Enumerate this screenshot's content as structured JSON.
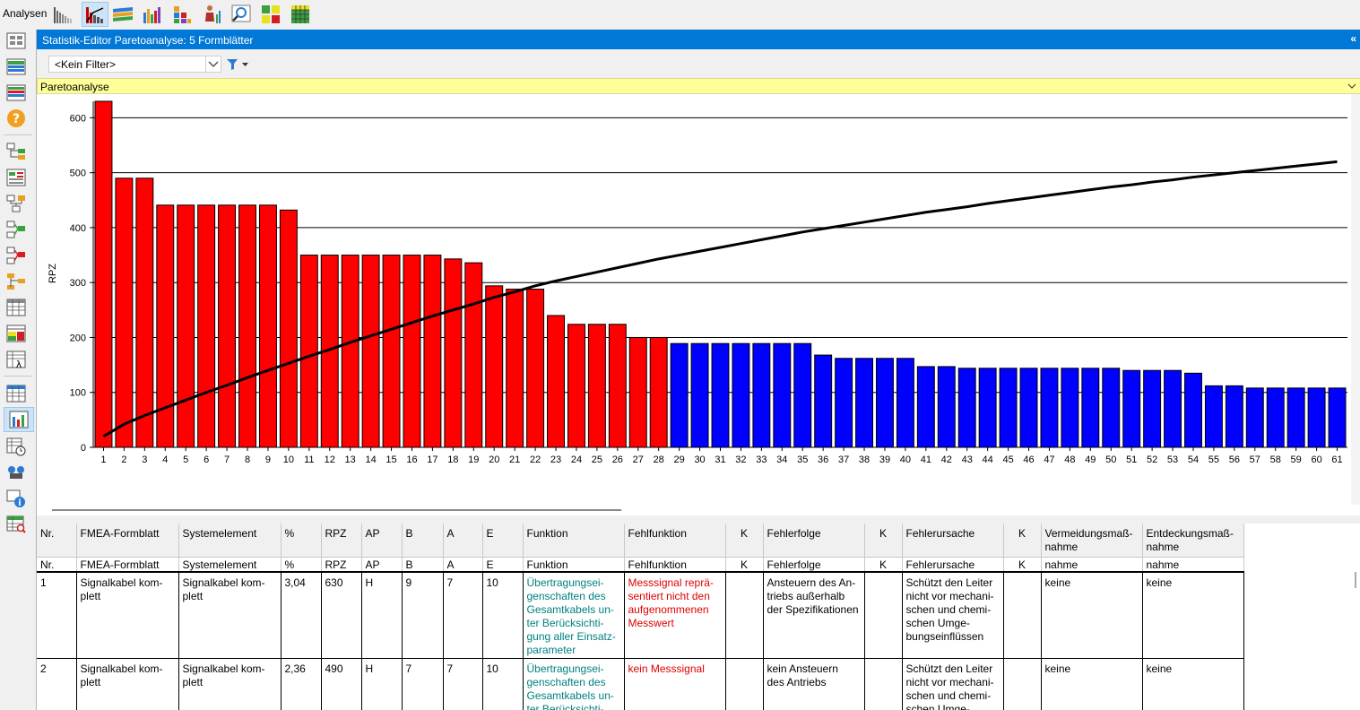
{
  "toolbar": {
    "label": "Analysen",
    "icons": [
      "bar-chart-icon",
      "pareto-chart-icon",
      "trend-lines-icon",
      "multi-bar-chart-icon",
      "stacked-blocks-icon",
      "person-chart-icon",
      "magnifier-chart-icon",
      "matrix-grid-icon",
      "matrix-table-icon"
    ]
  },
  "sidebar": {
    "icons": [
      "overview-grid-icon",
      "list-view-icon",
      "form-view-icon",
      "help-icon",
      "structure-tree-icon",
      "structure-form-icon",
      "function-tree-icon",
      "function-net-icon",
      "failure-net-icon",
      "failure-tree-icon",
      "table-icon",
      "table-colored-icon",
      "table-lambda-icon",
      "table-split-icon",
      "statistics-icon",
      "schedule-icon",
      "search-people-icon",
      "info-icon",
      "table-search-icon"
    ]
  },
  "panel": {
    "title": "Statistik-Editor Paretoanalyse: 5 Formblätter",
    "collapse_glyph": "«",
    "filter_value": "<Kein Filter>",
    "analysis_type": "Paretoanalyse"
  },
  "colors": {
    "accent": "#0078d7",
    "above_threshold": "#ff0000",
    "below_threshold": "#0000ff",
    "highlight_bar": "#ffff99"
  },
  "chart_data": {
    "type": "bar",
    "ylabel": "RPZ",
    "ylim": [
      0,
      630
    ],
    "yticks": [
      0,
      100,
      200,
      300,
      400,
      500,
      600
    ],
    "grid": true,
    "categories": [
      "1",
      "2",
      "3",
      "4",
      "5",
      "6",
      "7",
      "8",
      "9",
      "10",
      "11",
      "12",
      "13",
      "14",
      "15",
      "16",
      "17",
      "18",
      "19",
      "20",
      "21",
      "22",
      "23",
      "24",
      "25",
      "26",
      "27",
      "28",
      "29",
      "30",
      "31",
      "32",
      "33",
      "34",
      "35",
      "36",
      "37",
      "38",
      "39",
      "40",
      "41",
      "42",
      "43",
      "44",
      "45",
      "46",
      "47",
      "48",
      "49",
      "50",
      "51",
      "52",
      "53",
      "54",
      "55",
      "56",
      "57",
      "58",
      "59",
      "60",
      "61"
    ],
    "values": [
      630,
      490,
      490,
      441,
      441,
      441,
      441,
      441,
      441,
      432,
      350,
      350,
      350,
      350,
      350,
      350,
      350,
      343,
      336,
      294,
      288,
      288,
      240,
      224,
      224,
      224,
      200,
      200,
      189,
      189,
      189,
      189,
      189,
      189,
      189,
      168,
      162,
      162,
      162,
      162,
      147,
      147,
      144,
      144,
      144,
      144,
      144,
      144,
      144,
      144,
      140,
      140,
      140,
      135,
      112,
      112,
      108,
      108,
      108,
      108,
      108
    ],
    "red_count": 28,
    "series": [
      {
        "values": [
          20,
          42,
          58,
          72,
          86,
          100,
          113,
          127,
          140,
          153,
          166,
          178,
          191,
          203,
          215,
          227,
          239,
          250,
          261,
          273,
          283,
          294,
          303,
          311,
          319,
          327,
          335,
          343,
          350,
          357,
          364,
          371,
          378,
          385,
          392,
          398,
          404,
          410,
          416,
          422,
          428,
          433,
          438,
          444,
          449,
          454,
          459,
          464,
          469,
          474,
          478,
          483,
          487,
          492,
          496,
          500,
          504,
          508,
          512,
          516,
          520
        ]
      }
    ]
  },
  "table": {
    "columns": [
      {
        "key": "nr",
        "label": "Nr.",
        "sub": "Nr."
      },
      {
        "key": "formblatt",
        "label": "FMEA-Formblatt",
        "sub": "FMEA-Formblatt"
      },
      {
        "key": "systemelement",
        "label": "Systemelement",
        "sub": "Systemelement"
      },
      {
        "key": "pct",
        "label": "%",
        "sub": "%"
      },
      {
        "key": "rpz",
        "label": "RPZ",
        "sub": "RPZ"
      },
      {
        "key": "ap",
        "label": "AP",
        "sub": "AP"
      },
      {
        "key": "b",
        "label": "B",
        "sub": "B"
      },
      {
        "key": "a",
        "label": "A",
        "sub": "A"
      },
      {
        "key": "e",
        "label": "E",
        "sub": "E"
      },
      {
        "key": "funktion",
        "label": "Funktion",
        "sub": "Funktion"
      },
      {
        "key": "fehlfunktion",
        "label": "Fehlfunktion",
        "sub": "Fehlfunktion"
      },
      {
        "key": "k1",
        "label": "K",
        "sub": "K"
      },
      {
        "key": "fehlerfolge",
        "label": "Fehlerfolge",
        "sub": "Fehlerfolge"
      },
      {
        "key": "k2",
        "label": "K",
        "sub": "K"
      },
      {
        "key": "fehlerursache",
        "label": "Fehlerursache",
        "sub": "Fehlerursache"
      },
      {
        "key": "k3",
        "label": "K",
        "sub": "K"
      },
      {
        "key": "vermeidung",
        "label": "Vermeidungsmaß-\nnahme",
        "sub": "nahme"
      },
      {
        "key": "entdeckung",
        "label": "Entdeckungsmaß-\nnahme",
        "sub": "nahme"
      }
    ],
    "rows": [
      {
        "nr": "1",
        "formblatt": "Signalkabel kom-\nplett",
        "systemelement": "Signalkabel kom-\nplett",
        "pct": "3,04",
        "rpz": "630",
        "ap": "H",
        "b": "9",
        "a": "7",
        "e": "10",
        "funktion": "Übertragungsei-\ngenschaften des\nGesamtkabels un-\nter Berücksichti-\ngung aller Einsatz-\nparameter",
        "fehlfunktion": "Messsignal reprä-\nsentiert nicht den\naufgenommenen\nMesswert",
        "k1": "",
        "fehlerfolge": "Ansteuern des An-\ntriebs außerhalb\nder Spezifikationen",
        "k2": "",
        "fehlerursache": "Schützt den Leiter\nnicht vor mechani-\nschen und chemi-\nschen Umge-\nbungseinflüssen",
        "k3": "",
        "vermeidung": "keine",
        "entdeckung": "keine"
      },
      {
        "nr": "2",
        "formblatt": "Signalkabel kom-\nplett",
        "systemelement": "Signalkabel kom-\nplett",
        "pct": "2,36",
        "rpz": "490",
        "ap": "H",
        "b": "7",
        "a": "7",
        "e": "10",
        "funktion": "Übertragungsei-\ngenschaften des\nGesamtkabels un-\nter Berücksichti-\ngung aller Einsatz-\nparameter",
        "fehlfunktion": "kein Messsignal",
        "k1": "",
        "fehlerfolge": "kein Ansteuern\ndes Antriebs",
        "k2": "",
        "fehlerursache": "Schützt den Leiter\nnicht vor mechani-\nschen und chemi-\nschen Umge-\nbungseinflüssen",
        "k3": "",
        "vermeidung": "keine",
        "entdeckung": "keine"
      }
    ]
  }
}
